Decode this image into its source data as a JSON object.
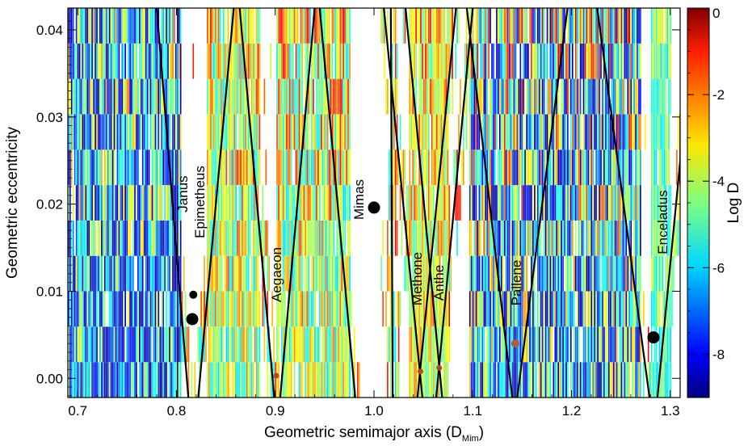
{
  "chart_data": {
    "type": "heatmap",
    "xlabel_main": "Geometric semimajor axis (D",
    "xlabel_sub": "Mim",
    "xlabel_close": ")",
    "ylabel": "Geometric eccentricity",
    "colorbar_label": "Log D",
    "xlim": [
      0.69,
      1.31
    ],
    "ylim": [
      -0.0022,
      0.0425
    ],
    "clim": [
      -9,
      0
    ],
    "xticks": [
      "0.7",
      "0.8",
      "0.9",
      "1.0",
      "1.1",
      "1.2",
      "1.3"
    ],
    "yticks": [
      "0.00",
      "0.01",
      "0.02",
      "0.03",
      "0.04"
    ],
    "cticks": [
      "0",
      "-2",
      "-4",
      "-6",
      "-8"
    ],
    "colormap": "jet",
    "grid": false,
    "moons": [
      {
        "name": "Janus",
        "a": 0.816,
        "e": 0.0068,
        "marker": "black-large"
      },
      {
        "name": "Epimetheus",
        "a": 0.817,
        "e": 0.0096,
        "marker": "black-small"
      },
      {
        "name": "Aegaeon",
        "a": 0.901,
        "e": 0.0003,
        "marker": "brown-small"
      },
      {
        "name": "Mimas",
        "a": 1.0,
        "e": 0.0196,
        "marker": "black-large"
      },
      {
        "name": "Methone",
        "a": 1.047,
        "e": 0.0008,
        "marker": "brown-small"
      },
      {
        "name": "Anthe",
        "a": 1.066,
        "e": 0.0012,
        "marker": "brown-small"
      },
      {
        "name": "Pallene",
        "a": 1.143,
        "e": 0.004,
        "marker": "brown-medium"
      },
      {
        "name": "Enceladus",
        "a": 1.283,
        "e": 0.0047,
        "marker": "black-large"
      }
    ],
    "crossing_lines": [
      {
        "bottom_a": 0.812,
        "top_a": 0.78
      },
      {
        "bottom_a": 0.822,
        "top_a": 0.858
      },
      {
        "bottom_a": 0.899,
        "top_a": 0.864
      },
      {
        "bottom_a": 0.905,
        "top_a": 0.94
      },
      {
        "bottom_a": 0.981,
        "top_a": 0.945
      },
      {
        "bottom_a": 1.019,
        "top_a": 1.017
      },
      {
        "bottom_a": 1.044,
        "top_a": 1.083
      },
      {
        "bottom_a": 1.049,
        "top_a": 1.01
      },
      {
        "bottom_a": 1.063,
        "top_a": 1.1
      },
      {
        "bottom_a": 1.069,
        "top_a": 1.032
      },
      {
        "bottom_a": 1.14,
        "top_a": 1.094
      },
      {
        "bottom_a": 1.145,
        "top_a": 1.196
      },
      {
        "bottom_a": 1.279,
        "top_a": 1.226
      },
      {
        "bottom_a": 1.287,
        "top_a": 1.325
      }
    ],
    "regions": [
      {
        "a_range": [
          0.69,
          0.805
        ],
        "logD_range": [
          -9,
          -1.5
        ],
        "level": "chaotic"
      },
      {
        "a_range": [
          0.83,
          0.885
        ],
        "logD_range": [
          -6,
          -0.5
        ],
        "level": "chaotic"
      },
      {
        "a_range": [
          0.9,
          0.975
        ],
        "logD_range": [
          -6,
          -0.5
        ],
        "level": "chaotic"
      },
      {
        "a_range": [
          1.035,
          1.075
        ],
        "logD_range": [
          -5,
          -1
        ],
        "level": "chaotic"
      },
      {
        "a_range": [
          1.095,
          1.27
        ],
        "logD_range": [
          -9,
          0
        ],
        "level": "chaotic"
      },
      {
        "a_range": [
          1.28,
          1.3
        ],
        "logD_range": [
          -6,
          -3
        ],
        "level": "chaotic"
      }
    ]
  }
}
